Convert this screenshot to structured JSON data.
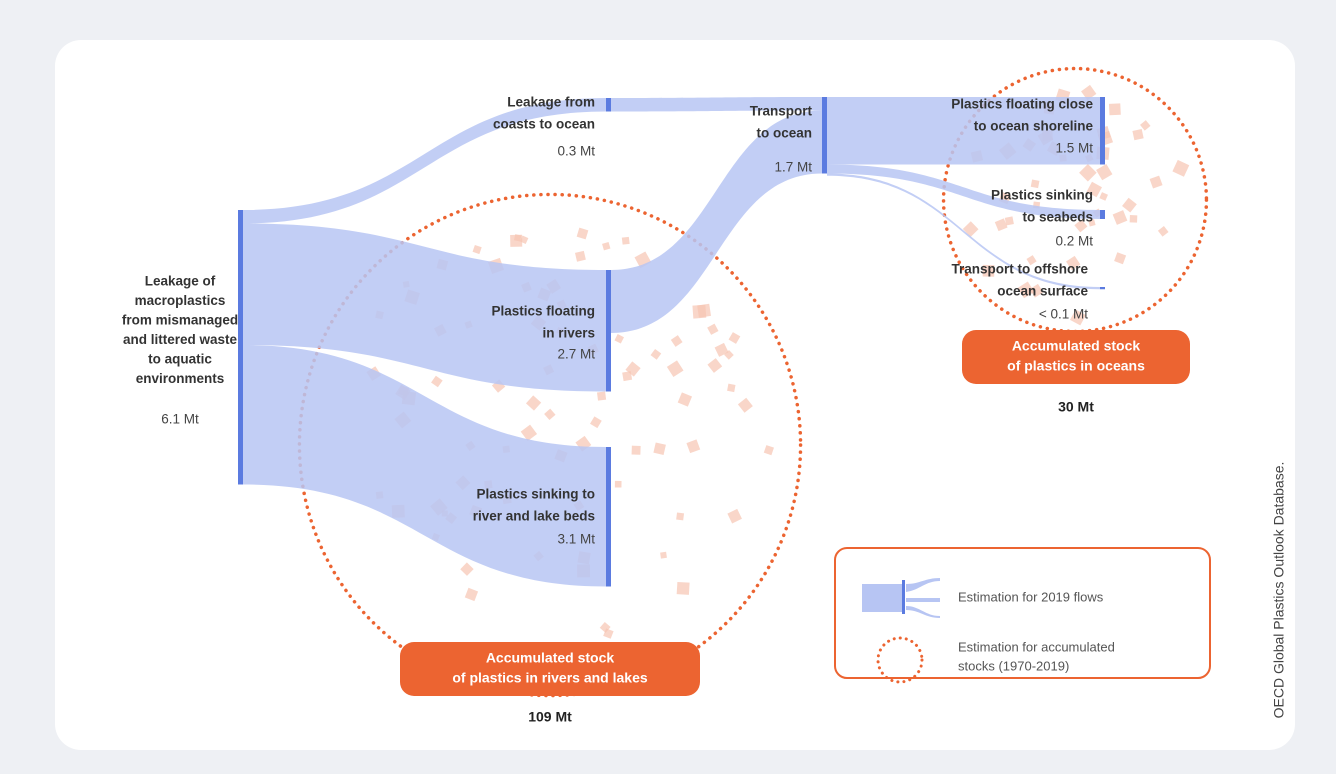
{
  "chart_data": {
    "type": "sankey",
    "nodes": [
      {
        "name": [
          "Leakage of",
          "macroplastics",
          "from mismanaged",
          "and littered waste",
          "to aquatic",
          "environments"
        ],
        "value": 6.1,
        "value_label": "6.1 Mt"
      },
      {
        "name": [
          "Leakage from",
          "coasts to ocean"
        ],
        "value": 0.3,
        "value_label": "0.3 Mt"
      },
      {
        "name": [
          "Plastics floating",
          "in rivers"
        ],
        "value": 2.7,
        "value_label": "2.7 Mt"
      },
      {
        "name": [
          "Plastics sinking to",
          "river and lake beds"
        ],
        "value": 3.1,
        "value_label": "3.1 Mt"
      },
      {
        "name": [
          "Transport",
          "to ocean"
        ],
        "value": 1.7,
        "value_label": "1.7 Mt"
      },
      {
        "name": [
          "Plastics floating close",
          "to ocean shoreline"
        ],
        "value": 1.5,
        "value_label": "1.5 Mt"
      },
      {
        "name": [
          "Plastics sinking",
          "to seabeds"
        ],
        "value": 0.2,
        "value_label": "0.2 Mt"
      },
      {
        "name": [
          "Transport to offshore",
          "ocean surface"
        ],
        "value": 0.05,
        "value_label": "< 0.1 Mt"
      }
    ],
    "links": [
      {
        "source": 0,
        "target": 1,
        "value": 0.3
      },
      {
        "source": 0,
        "target": 2,
        "value": 2.7
      },
      {
        "source": 0,
        "target": 3,
        "value": 3.1
      },
      {
        "source": 1,
        "target": 4,
        "value": 0.3
      },
      {
        "source": 2,
        "target": 4,
        "value": 1.4
      },
      {
        "source": 4,
        "target": 5,
        "value": 1.5
      },
      {
        "source": 4,
        "target": 6,
        "value": 0.2
      },
      {
        "source": 4,
        "target": 7,
        "value": 0.05
      }
    ],
    "stocks": [
      {
        "name": [
          "Accumulated stock",
          "of plastics in rivers and lakes"
        ],
        "value": 109,
        "value_label": "109 Mt"
      },
      {
        "name": [
          "Accumulated stock",
          "of plastics in oceans"
        ],
        "value": 30,
        "value_label": "30 Mt"
      }
    ],
    "legend": [
      [
        "Estimation for 2019 flows"
      ],
      [
        "Estimation for accumulated",
        "stocks (1970-2019)"
      ]
    ],
    "node_color": "#5b7be0",
    "link_color": "#b7c5f3",
    "stock_color": "#ec6431",
    "source": "OECD Global Plastics Outlook Database."
  }
}
